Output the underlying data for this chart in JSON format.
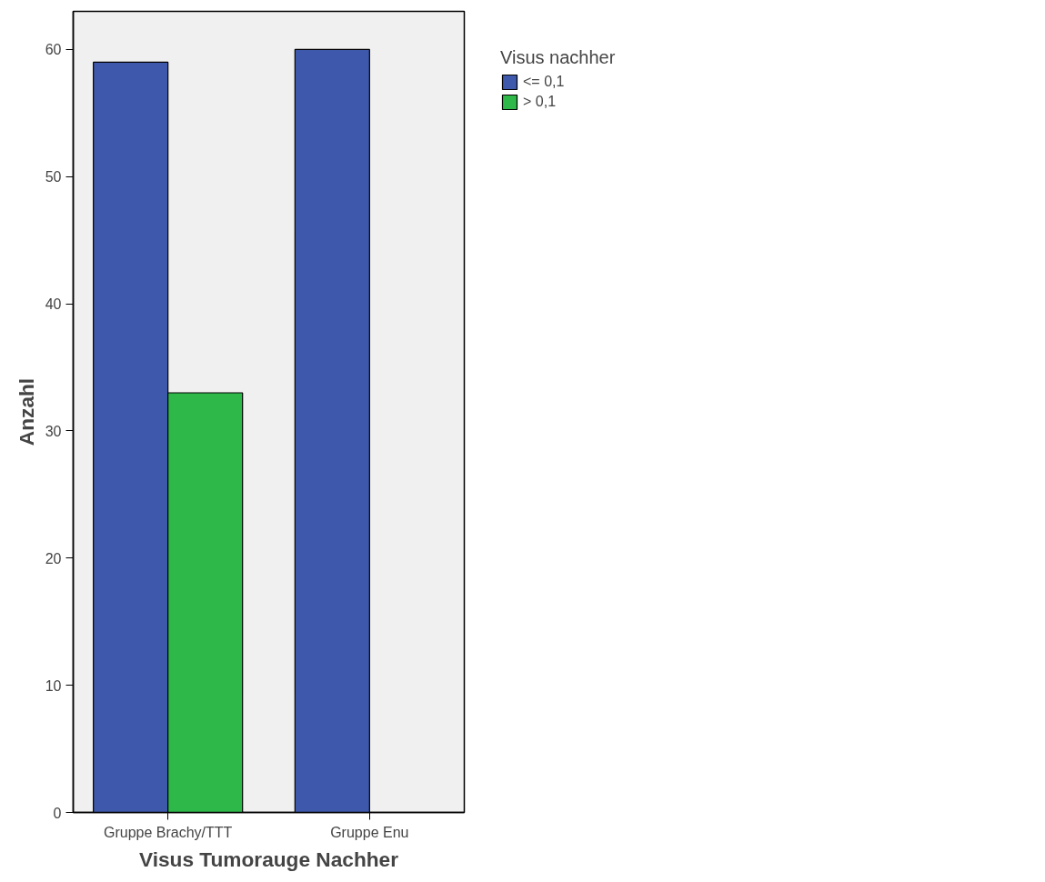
{
  "chart_data": {
    "type": "bar",
    "xlabel": "Visus Tumorauge Nachher",
    "ylabel": "Anzahl",
    "legend_title": "Visus nachher",
    "categories": [
      "Gruppe Brachy/TTT",
      "Gruppe Enu"
    ],
    "series": [
      {
        "name": "<= 0,1",
        "color": "#3e58ac",
        "values": [
          59,
          60
        ]
      },
      {
        "name": "> 0,1",
        "color": "#2fb84a",
        "values": [
          33,
          null
        ]
      }
    ],
    "ylim": [
      0,
      63
    ],
    "yticks": [
      0,
      10,
      20,
      30,
      40,
      50,
      60
    ],
    "grid": false,
    "legend": "right"
  }
}
